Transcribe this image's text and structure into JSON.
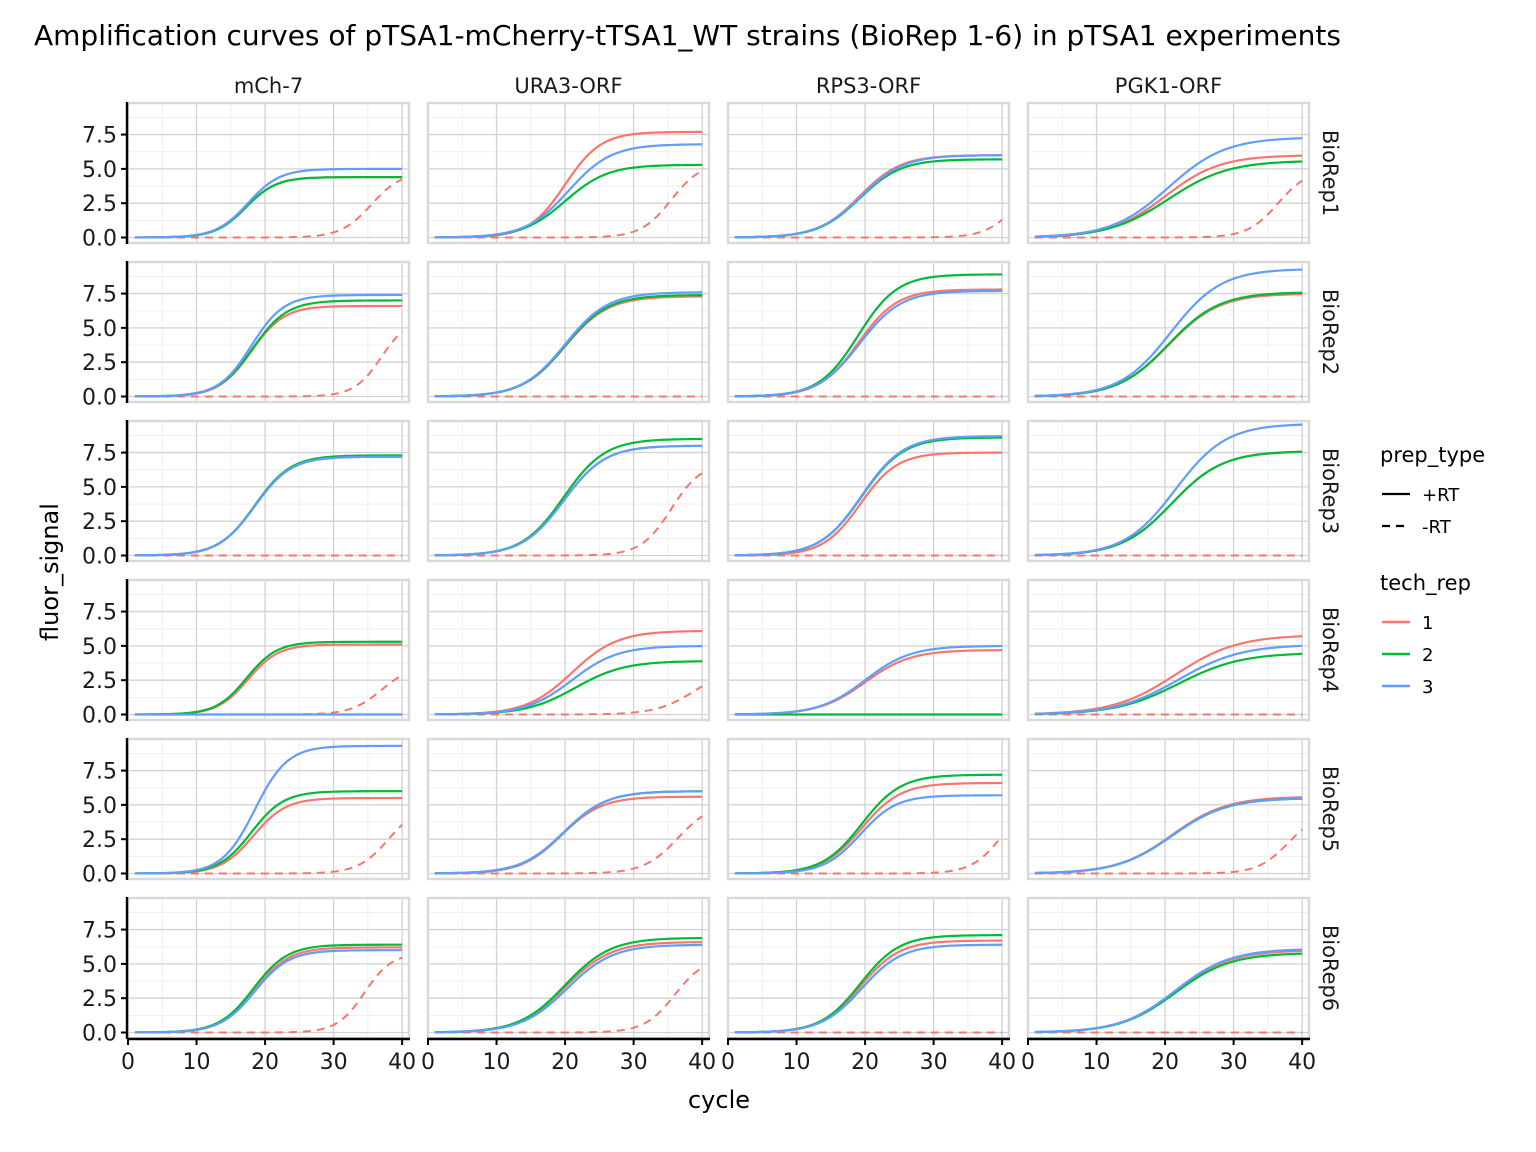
{
  "chart_data": {
    "type": "line",
    "title": "Amplification curves of pTSA1-mCherry-tTSA1_WT strains (BioRep 1-6) in pTSA1 experiments",
    "xlabel": "cycle",
    "ylabel": "fluor_signal",
    "xlim": [
      0,
      41
    ],
    "ylim": [
      -0.4,
      9.8
    ],
    "xticks": [
      0,
      10,
      20,
      30,
      40
    ],
    "yticks": [
      0.0,
      2.5,
      5.0,
      7.5
    ],
    "ytick_labels": [
      "0.0",
      "2.5",
      "5.0",
      "7.5"
    ],
    "grid": true,
    "legend_position": "right",
    "columns": [
      "mCh-7",
      "URA3-ORF",
      "RPS3-ORF",
      "PGK1-ORF"
    ],
    "rows": [
      "BioRep1",
      "BioRep2",
      "BioRep3",
      "BioRep4",
      "BioRep5",
      "BioRep6"
    ],
    "legend": {
      "prep_type": {
        "title": "prep_type",
        "entries": [
          "+RT",
          "-RT"
        ]
      },
      "tech_rep": {
        "title": "tech_rep",
        "entries": [
          "1",
          "2",
          "3"
        ]
      }
    },
    "colors": {
      "1": "#F8766D",
      "2": "#00BA38",
      "3": "#619CFF"
    },
    "curve_model": "sigmoid plateau, midpoint cycle, steepness",
    "panels": [
      {
        "row": "BioRep1",
        "col": "mCh-7",
        "rt": [
          {
            "rep": "1",
            "plateau": 4.4,
            "mid": 17.2,
            "k": 0.45
          },
          {
            "rep": "2",
            "plateau": 4.4,
            "mid": 17.2,
            "k": 0.45
          },
          {
            "rep": "3",
            "plateau": 5.0,
            "mid": 17.5,
            "k": 0.43
          }
        ],
        "nort": [
          {
            "rep": "1",
            "plateau": 4.8,
            "mid": 35.5,
            "k": 0.45
          }
        ]
      },
      {
        "row": "BioRep1",
        "col": "URA3-ORF",
        "rt": [
          {
            "rep": "1",
            "plateau": 7.7,
            "mid": 20.0,
            "k": 0.38
          },
          {
            "rep": "2",
            "plateau": 5.3,
            "mid": 20.0,
            "k": 0.32
          },
          {
            "rep": "3",
            "plateau": 6.8,
            "mid": 20.5,
            "k": 0.32
          }
        ],
        "nort": [
          {
            "rep": "1",
            "plateau": 5.5,
            "mid": 35.5,
            "k": 0.45
          }
        ]
      },
      {
        "row": "BioRep1",
        "col": "RPS3-ORF",
        "rt": [
          {
            "rep": "1",
            "plateau": 6.0,
            "mid": 19.2,
            "k": 0.33
          },
          {
            "rep": "2",
            "plateau": 5.7,
            "mid": 19.2,
            "k": 0.33
          },
          {
            "rep": "3",
            "plateau": 6.0,
            "mid": 19.4,
            "k": 0.32
          }
        ],
        "nort": [
          {
            "rep": "1",
            "plateau": 4.5,
            "mid": 42.0,
            "k": 0.45
          }
        ]
      },
      {
        "row": "BioRep1",
        "col": "PGK1-ORF",
        "rt": [
          {
            "rep": "1",
            "plateau": 6.0,
            "mid": 20.0,
            "k": 0.25
          },
          {
            "rep": "2",
            "plateau": 5.6,
            "mid": 20.5,
            "k": 0.23
          },
          {
            "rep": "3",
            "plateau": 7.3,
            "mid": 20.5,
            "k": 0.24
          }
        ],
        "nort": [
          {
            "rep": "1",
            "plateau": 5.0,
            "mid": 36.5,
            "k": 0.45
          }
        ]
      },
      {
        "row": "BioRep2",
        "col": "mCh-7",
        "rt": [
          {
            "rep": "1",
            "plateau": 6.6,
            "mid": 18.0,
            "k": 0.42
          },
          {
            "rep": "2",
            "plateau": 7.0,
            "mid": 18.2,
            "k": 0.4
          },
          {
            "rep": "3",
            "plateau": 7.4,
            "mid": 18.0,
            "k": 0.42
          }
        ],
        "nort": [
          {
            "rep": "1",
            "plateau": 5.8,
            "mid": 37.0,
            "k": 0.5
          }
        ]
      },
      {
        "row": "BioRep2",
        "col": "URA3-ORF",
        "rt": [
          {
            "rep": "1",
            "plateau": 7.3,
            "mid": 20.0,
            "k": 0.32
          },
          {
            "rep": "2",
            "plateau": 7.4,
            "mid": 20.0,
            "k": 0.32
          },
          {
            "rep": "3",
            "plateau": 7.6,
            "mid": 20.0,
            "k": 0.32
          }
        ],
        "nort": [
          {
            "rep": "1",
            "plateau": 0.0,
            "mid": 60.0,
            "k": 0.45
          }
        ]
      },
      {
        "row": "BioRep2",
        "col": "RPS3-ORF",
        "rt": [
          {
            "rep": "1",
            "plateau": 7.8,
            "mid": 19.0,
            "k": 0.35
          },
          {
            "rep": "2",
            "plateau": 8.9,
            "mid": 19.0,
            "k": 0.35
          },
          {
            "rep": "3",
            "plateau": 7.7,
            "mid": 19.2,
            "k": 0.33
          }
        ],
        "nort": [
          {
            "rep": "1",
            "plateau": 0.0,
            "mid": 60.0,
            "k": 0.45
          }
        ]
      },
      {
        "row": "BioRep2",
        "col": "PGK1-ORF",
        "rt": [
          {
            "rep": "1",
            "plateau": 7.5,
            "mid": 20.5,
            "k": 0.27
          },
          {
            "rep": "2",
            "plateau": 7.6,
            "mid": 20.5,
            "k": 0.27
          },
          {
            "rep": "3",
            "plateau": 9.3,
            "mid": 20.8,
            "k": 0.27
          }
        ],
        "nort": [
          {
            "rep": "1",
            "plateau": 0.0,
            "mid": 60.0,
            "k": 0.45
          }
        ]
      },
      {
        "row": "BioRep3",
        "col": "mCh-7",
        "rt": [
          {
            "rep": "1",
            "plateau": 7.2,
            "mid": 18.5,
            "k": 0.38
          },
          {
            "rep": "2",
            "plateau": 7.3,
            "mid": 18.5,
            "k": 0.38
          },
          {
            "rep": "3",
            "plateau": 7.2,
            "mid": 18.5,
            "k": 0.38
          }
        ],
        "nort": [
          {
            "rep": "1",
            "plateau": 0.0,
            "mid": 60.0,
            "k": 0.45
          }
        ]
      },
      {
        "row": "BioRep3",
        "col": "URA3-ORF",
        "rt": [
          {
            "rep": "1",
            "plateau": 8.0,
            "mid": 19.8,
            "k": 0.33
          },
          {
            "rep": "2",
            "plateau": 8.5,
            "mid": 19.8,
            "k": 0.33
          },
          {
            "rep": "3",
            "plateau": 8.0,
            "mid": 19.8,
            "k": 0.33
          }
        ],
        "nort": [
          {
            "rep": "1",
            "plateau": 6.8,
            "mid": 35.5,
            "k": 0.45
          }
        ]
      },
      {
        "row": "BioRep3",
        "col": "RPS3-ORF",
        "rt": [
          {
            "rep": "1",
            "plateau": 7.5,
            "mid": 19.3,
            "k": 0.37
          },
          {
            "rep": "2",
            "plateau": 8.6,
            "mid": 19.5,
            "k": 0.33
          },
          {
            "rep": "3",
            "plateau": 8.7,
            "mid": 19.5,
            "k": 0.33
          }
        ],
        "nort": [
          {
            "rep": "1",
            "plateau": 0.0,
            "mid": 60.0,
            "k": 0.45
          }
        ]
      },
      {
        "row": "BioRep3",
        "col": "PGK1-ORF",
        "rt": [
          {
            "rep": "1",
            "plateau": 7.6,
            "mid": 21.0,
            "k": 0.27
          },
          {
            "rep": "2",
            "plateau": 7.6,
            "mid": 21.0,
            "k": 0.27
          },
          {
            "rep": "3",
            "plateau": 9.6,
            "mid": 21.5,
            "k": 0.27
          }
        ],
        "nort": [
          {
            "rep": "1",
            "plateau": 0.0,
            "mid": 60.0,
            "k": 0.45
          }
        ]
      },
      {
        "row": "BioRep4",
        "col": "mCh-7",
        "rt": [
          {
            "rep": "1",
            "plateau": 5.1,
            "mid": 17.5,
            "k": 0.45
          },
          {
            "rep": "2",
            "plateau": 5.3,
            "mid": 17.3,
            "k": 0.45
          },
          {
            "rep": "3",
            "plateau": 0.0,
            "mid": 60.0,
            "k": 0.45
          }
        ],
        "nort": [
          {
            "rep": "1",
            "plateau": 3.6,
            "mid": 37.0,
            "k": 0.45
          }
        ]
      },
      {
        "row": "BioRep4",
        "col": "URA3-ORF",
        "rt": [
          {
            "rep": "1",
            "plateau": 6.1,
            "mid": 21.0,
            "k": 0.3
          },
          {
            "rep": "2",
            "plateau": 3.9,
            "mid": 21.5,
            "k": 0.28
          },
          {
            "rep": "3",
            "plateau": 5.0,
            "mid": 21.0,
            "k": 0.3
          }
        ],
        "nort": [
          {
            "rep": "1",
            "plateau": 3.5,
            "mid": 39.0,
            "k": 0.35
          }
        ]
      },
      {
        "row": "BioRep4",
        "col": "RPS3-ORF",
        "rt": [
          {
            "rep": "1",
            "plateau": 4.7,
            "mid": 20.0,
            "k": 0.3
          },
          {
            "rep": "2",
            "plateau": 0.0,
            "mid": 60.0,
            "k": 0.45
          },
          {
            "rep": "3",
            "plateau": 5.0,
            "mid": 20.0,
            "k": 0.3
          }
        ],
        "nort": [
          {
            "rep": "1",
            "plateau": 0.0,
            "mid": 60.0,
            "k": 0.45
          }
        ]
      },
      {
        "row": "BioRep4",
        "col": "PGK1-ORF",
        "rt": [
          {
            "rep": "1",
            "plateau": 5.8,
            "mid": 21.5,
            "k": 0.22
          },
          {
            "rep": "2",
            "plateau": 4.5,
            "mid": 22.0,
            "k": 0.22
          },
          {
            "rep": "3",
            "plateau": 5.1,
            "mid": 22.0,
            "k": 0.22
          }
        ],
        "nort": [
          {
            "rep": "1",
            "plateau": 0.0,
            "mid": 60.0,
            "k": 0.45
          }
        ]
      },
      {
        "row": "BioRep5",
        "col": "mCh-7",
        "rt": [
          {
            "rep": "1",
            "plateau": 5.5,
            "mid": 18.3,
            "k": 0.42
          },
          {
            "rep": "2",
            "plateau": 6.0,
            "mid": 18.0,
            "k": 0.42
          },
          {
            "rep": "3",
            "plateau": 9.3,
            "mid": 18.5,
            "k": 0.42
          }
        ],
        "nort": [
          {
            "rep": "1",
            "plateau": 5.0,
            "mid": 38.0,
            "k": 0.45
          }
        ]
      },
      {
        "row": "BioRep5",
        "col": "URA3-ORF",
        "rt": [
          {
            "rep": "1",
            "plateau": 5.6,
            "mid": 19.5,
            "k": 0.34
          },
          {
            "rep": "2",
            "plateau": 6.0,
            "mid": 19.8,
            "k": 0.32
          },
          {
            "rep": "3",
            "plateau": 6.0,
            "mid": 19.8,
            "k": 0.32
          }
        ],
        "nort": [
          {
            "rep": "1",
            "plateau": 5.2,
            "mid": 36.5,
            "k": 0.4
          }
        ]
      },
      {
        "row": "BioRep5",
        "col": "RPS3-ORF",
        "rt": [
          {
            "rep": "1",
            "plateau": 6.6,
            "mid": 19.5,
            "k": 0.35
          },
          {
            "rep": "2",
            "plateau": 7.2,
            "mid": 19.5,
            "k": 0.35
          },
          {
            "rep": "3",
            "plateau": 5.7,
            "mid": 19.3,
            "k": 0.38
          }
        ],
        "nort": [
          {
            "rep": "1",
            "plateau": 5.5,
            "mid": 40.0,
            "k": 0.45
          }
        ]
      },
      {
        "row": "BioRep5",
        "col": "PGK1-ORF",
        "rt": [
          {
            "rep": "1",
            "plateau": 5.6,
            "mid": 21.0,
            "k": 0.25
          },
          {
            "rep": "2",
            "plateau": 5.5,
            "mid": 21.0,
            "k": 0.25
          },
          {
            "rep": "3",
            "plateau": 5.5,
            "mid": 21.0,
            "k": 0.25
          }
        ],
        "nort": [
          {
            "rep": "1",
            "plateau": 4.5,
            "mid": 38.0,
            "k": 0.45
          }
        ]
      },
      {
        "row": "BioRep6",
        "col": "mCh-7",
        "rt": [
          {
            "rep": "1",
            "plateau": 6.2,
            "mid": 18.5,
            "k": 0.4
          },
          {
            "rep": "2",
            "plateau": 6.4,
            "mid": 18.3,
            "k": 0.4
          },
          {
            "rep": "3",
            "plateau": 6.0,
            "mid": 18.5,
            "k": 0.4
          }
        ],
        "nort": [
          {
            "rep": "1",
            "plateau": 5.8,
            "mid": 34.5,
            "k": 0.5
          }
        ]
      },
      {
        "row": "BioRep6",
        "col": "URA3-ORF",
        "rt": [
          {
            "rep": "1",
            "plateau": 6.6,
            "mid": 20.0,
            "k": 0.3
          },
          {
            "rep": "2",
            "plateau": 6.9,
            "mid": 20.0,
            "k": 0.3
          },
          {
            "rep": "3",
            "plateau": 6.4,
            "mid": 20.3,
            "k": 0.3
          }
        ],
        "nort": [
          {
            "rep": "1",
            "plateau": 5.5,
            "mid": 36.0,
            "k": 0.45
          }
        ]
      },
      {
        "row": "BioRep6",
        "col": "RPS3-ORF",
        "rt": [
          {
            "rep": "1",
            "plateau": 6.7,
            "mid": 19.3,
            "k": 0.35
          },
          {
            "rep": "2",
            "plateau": 7.1,
            "mid": 19.3,
            "k": 0.35
          },
          {
            "rep": "3",
            "plateau": 6.4,
            "mid": 19.5,
            "k": 0.34
          }
        ],
        "nort": [
          {
            "rep": "1",
            "plateau": 0.0,
            "mid": 60.0,
            "k": 0.45
          }
        ]
      },
      {
        "row": "BioRep6",
        "col": "PGK1-ORF",
        "rt": [
          {
            "rep": "1",
            "plateau": 6.0,
            "mid": 21.5,
            "k": 0.25
          },
          {
            "rep": "2",
            "plateau": 5.8,
            "mid": 21.5,
            "k": 0.25
          },
          {
            "rep": "3",
            "plateau": 6.1,
            "mid": 21.5,
            "k": 0.25
          }
        ],
        "nort": [
          {
            "rep": "1",
            "plateau": 0.0,
            "mid": 60.0,
            "k": 0.45
          }
        ]
      }
    ]
  }
}
